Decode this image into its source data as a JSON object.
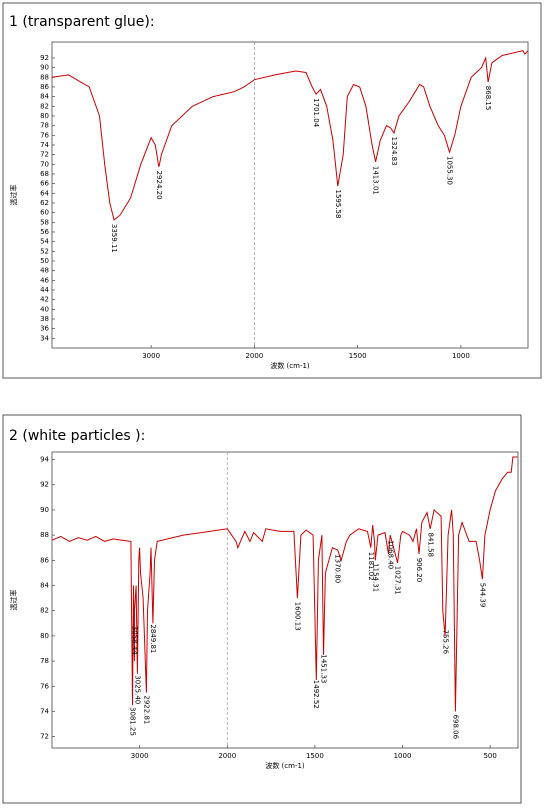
{
  "chart_data": [
    {
      "type": "line",
      "title": "1 (transparent glue):",
      "xlabel": "波数 (cm-1)",
      "ylabel": "透过率",
      "color": "#cc0000",
      "x_break": 2000,
      "x_break_factor": 2,
      "xlim": [
        3960,
        675
      ],
      "xticks": [
        3000,
        2000,
        1500,
        1000
      ],
      "ylim": [
        32,
        95.3
      ],
      "yticks": [
        34,
        36,
        38,
        40,
        42,
        44,
        46,
        48,
        50,
        52,
        54,
        56,
        58,
        60,
        62,
        64,
        66,
        68,
        70,
        72,
        74,
        76,
        78,
        80,
        82,
        84,
        86,
        88,
        90,
        92
      ],
      "x": [
        3960,
        3800,
        3600,
        3500,
        3450,
        3400,
        3359,
        3300,
        3200,
        3100,
        3000,
        2960,
        2930,
        2924,
        2900,
        2800,
        2600,
        2400,
        2200,
        2100,
        2000,
        1900,
        1800,
        1750,
        1720,
        1701,
        1680,
        1650,
        1620,
        1596,
        1570,
        1550,
        1520,
        1490,
        1460,
        1430,
        1413,
        1390,
        1360,
        1340,
        1324,
        1300,
        1250,
        1200,
        1180,
        1150,
        1110,
        1080,
        1055,
        1030,
        1000,
        950,
        900,
        880,
        868,
        850,
        800,
        750,
        700,
        690,
        675
      ],
      "values": [
        88.0,
        88.5,
        86,
        80,
        70,
        62,
        58.5,
        59.5,
        63,
        70,
        75.5,
        74,
        70,
        69.5,
        72,
        78,
        82,
        84,
        85,
        86,
        87.5,
        88.5,
        89.3,
        89,
        86,
        84.5,
        85.5,
        82,
        75,
        65.5,
        72,
        84,
        86.5,
        86,
        82,
        74,
        70.5,
        75,
        78,
        77.5,
        76.5,
        80,
        83,
        86.5,
        86,
        82,
        78,
        76,
        72.5,
        76,
        82,
        88,
        90,
        92,
        87,
        91,
        92.5,
        93,
        93.5,
        92.8,
        93.5
      ],
      "annotations": [
        {
          "x": 3359.11,
          "label": "3359.11"
        },
        {
          "x": 2924.2,
          "label": "2924.20"
        },
        {
          "x": 1701.04,
          "label": "1701.04"
        },
        {
          "x": 1595.58,
          "label": "1595.58"
        },
        {
          "x": 1413.01,
          "label": "1413.01"
        },
        {
          "x": 1324.83,
          "label": "1324.83"
        },
        {
          "x": 1055.3,
          "label": "1055.30"
        },
        {
          "x": 868.15,
          "label": "868.15"
        }
      ]
    },
    {
      "type": "line",
      "title": "2 (white particles ):",
      "xlabel": "波数 (cm-1)",
      "ylabel": "透过率",
      "color": "#cc0000",
      "x_break": 2000,
      "x_break_factor": 2,
      "xlim": [
        4000,
        341
      ],
      "xticks": [
        3000,
        2000,
        1500,
        1000,
        500
      ],
      "ylim": [
        71.1,
        94.6
      ],
      "yticks": [
        72,
        74,
        76,
        78,
        80,
        82,
        84,
        86,
        88,
        90,
        92,
        94
      ],
      "x": [
        4000,
        3900,
        3800,
        3700,
        3600,
        3500,
        3400,
        3300,
        3200,
        3100,
        3081,
        3070,
        3060,
        3058,
        3040,
        3025,
        3010,
        3000,
        2990,
        2960,
        2923,
        2910,
        2880,
        2870,
        2849,
        2830,
        2800,
        2500,
        2200,
        2000,
        1950,
        1940,
        1900,
        1870,
        1850,
        1800,
        1780,
        1700,
        1620,
        1600,
        1580,
        1550,
        1510,
        1492,
        1480,
        1460,
        1451,
        1440,
        1400,
        1370,
        1350,
        1320,
        1300,
        1250,
        1200,
        1181,
        1170,
        1160,
        1155,
        1140,
        1100,
        1080,
        1070,
        1028,
        1010,
        1000,
        960,
        940,
        920,
        906,
        890,
        860,
        842,
        820,
        780,
        770,
        757,
        740,
        720,
        710,
        698,
        690,
        680,
        660,
        620,
        580,
        560,
        544,
        530,
        500,
        470,
        430,
        400,
        380,
        370,
        345
      ],
      "values": [
        87.6,
        87.9,
        87.5,
        87.8,
        87.6,
        87.9,
        87.5,
        87.7,
        87.6,
        87.5,
        74.5,
        84,
        78,
        82,
        84,
        77,
        86,
        87,
        85,
        83,
        75.5,
        82,
        85,
        87,
        81,
        86,
        87.5,
        88,
        88.3,
        88.5,
        87.5,
        87,
        88.3,
        87.5,
        88.2,
        87.5,
        88.5,
        88.3,
        88.3,
        83,
        88,
        88.4,
        88,
        76.5,
        86,
        88,
        78.5,
        85,
        87,
        86.8,
        86,
        87.5,
        88,
        88.5,
        88.3,
        87,
        88.8,
        87.5,
        86,
        88,
        88.2,
        86.5,
        88,
        85.8,
        88,
        88.3,
        88,
        87.5,
        88.5,
        86.5,
        89,
        89.8,
        88.5,
        90,
        89.5,
        82,
        80,
        88,
        90,
        88,
        74,
        80,
        88,
        89,
        87.5,
        87.5,
        86,
        84.5,
        88,
        90,
        91.5,
        92.5,
        93,
        93,
        94.2,
        94.2
      ],
      "annotations": [
        {
          "x": 3081.25,
          "label": "3081.25"
        },
        {
          "x": 3058.44,
          "label": "3058.44"
        },
        {
          "x": 3025.4,
          "label": "3025.40"
        },
        {
          "x": 2922.81,
          "label": "2922.81"
        },
        {
          "x": 2849.81,
          "label": "2849.81"
        },
        {
          "x": 1600.13,
          "label": "1600.13"
        },
        {
          "x": 1492.52,
          "label": "1492.52"
        },
        {
          "x": 1451.33,
          "label": "1451.33"
        },
        {
          "x": 1370.8,
          "label": "1370.80"
        },
        {
          "x": 1181.02,
          "label": "1181.02"
        },
        {
          "x": 1154.31,
          "label": "1154.31"
        },
        {
          "x": 1068.4,
          "label": "1068.40"
        },
        {
          "x": 1027.31,
          "label": "1027.31"
        },
        {
          "x": 906.2,
          "label": "906.20"
        },
        {
          "x": 841.58,
          "label": "841.58"
        },
        {
          "x": 755.26,
          "label": "755.26"
        },
        {
          "x": 698.06,
          "label": "698.06"
        },
        {
          "x": 544.39,
          "label": "544.39"
        }
      ]
    }
  ]
}
